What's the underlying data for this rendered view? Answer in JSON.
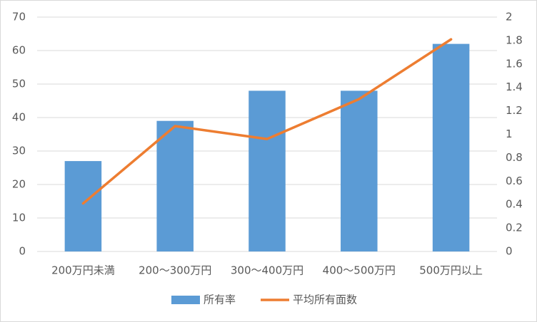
{
  "chart_data": {
    "type": "bar",
    "categories": [
      "200万円未満",
      "200～300万円",
      "300～400万円",
      "400～500万円",
      "500万円以上"
    ],
    "series": [
      {
        "name": "所有率",
        "type": "bar",
        "color": "#5b9bd5",
        "values": [
          27,
          39,
          48,
          48,
          62
        ]
      },
      {
        "name": "平均所有面数",
        "type": "line",
        "axis": "y2",
        "color": "#ed7d31",
        "values": [
          0.41,
          1.07,
          0.96,
          1.3,
          1.81
        ]
      }
    ],
    "ylim": [
      0,
      70
    ],
    "yticks": [
      0,
      10,
      20,
      30,
      40,
      50,
      60,
      70
    ],
    "y2lim": [
      0,
      2
    ],
    "y2ticks": [
      0,
      0.2,
      0.4,
      0.6,
      0.8,
      1,
      1.2,
      1.4,
      1.6,
      1.8,
      2
    ],
    "grid": true,
    "legend": "bottom"
  }
}
